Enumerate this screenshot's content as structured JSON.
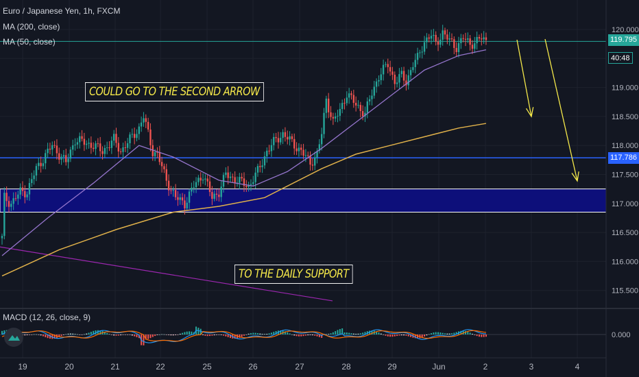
{
  "header": {
    "symbol_line": "Euro / Japanese Yen, 1h, FXCM",
    "ma200_label": "MA (200, close)",
    "ma50_label": "MA (50, close)",
    "macd_label": "MACD (12, 26, close, 9)"
  },
  "annotations": {
    "top_note": "COULD GO TO THE SECOND ARROW",
    "bottom_note": "TO THE DAILY SUPPORT"
  },
  "price_axis": {
    "current_price": "119.795",
    "countdown": "40:48",
    "level_price": "117.786",
    "ticks": [
      "120.000",
      "119.000",
      "118.500",
      "118.000",
      "117.500",
      "117.000",
      "116.500",
      "116.000",
      "115.500"
    ],
    "macd_tick": "0.000"
  },
  "time_axis": {
    "ticks": [
      "19",
      "20",
      "21",
      "22",
      "25",
      "26",
      "27",
      "28",
      "29",
      "Jun",
      "2",
      "3",
      "4"
    ]
  },
  "colors": {
    "background": "#131722",
    "up": "#26a69a",
    "down": "#ef5350",
    "ma50": "#9575cd",
    "ma200": "#e0b14a",
    "support_zone": "#0d0f7a",
    "level_line": "#2962ff",
    "trendline": "#9c27b0",
    "arrow": "#f5e94a",
    "macd_line": "#2196f3",
    "signal_line": "#ff6d00"
  },
  "chart_data": {
    "type": "candlestick",
    "title": "Euro / Japanese Yen, 1h, FXCM",
    "ylim": [
      115.3,
      120.15
    ],
    "x_categories": [
      "19",
      "20",
      "21",
      "22",
      "25",
      "26",
      "27",
      "28",
      "29",
      "Jun",
      "2",
      "3",
      "4"
    ],
    "price_anchors": [
      [
        0,
        116.4
      ],
      [
        1,
        117.1
      ],
      [
        4,
        117.0
      ],
      [
        8,
        117.2
      ],
      [
        11,
        117.2
      ],
      [
        15,
        117.6
      ],
      [
        22,
        118.0
      ],
      [
        28,
        117.7
      ],
      [
        32,
        118.1
      ],
      [
        40,
        118.0
      ],
      [
        44,
        117.9
      ],
      [
        49,
        118.1
      ],
      [
        52,
        117.9
      ],
      [
        55,
        118.05
      ],
      [
        60,
        118.3
      ],
      [
        62,
        118.5
      ],
      [
        66,
        117.9
      ],
      [
        68,
        117.85
      ],
      [
        72,
        117.4
      ],
      [
        76,
        117.1
      ],
      [
        80,
        117.0
      ],
      [
        84,
        117.3
      ],
      [
        88,
        117.5
      ],
      [
        92,
        117.1
      ],
      [
        95,
        117.2
      ],
      [
        98,
        117.5
      ],
      [
        103,
        117.4
      ],
      [
        108,
        117.3
      ],
      [
        112,
        117.55
      ],
      [
        116,
        117.9
      ],
      [
        120,
        118.1
      ],
      [
        123,
        118.2
      ],
      [
        127,
        118.05
      ],
      [
        131,
        117.9
      ],
      [
        135,
        117.7
      ],
      [
        138,
        117.85
      ],
      [
        140,
        118.2
      ],
      [
        142,
        118.8
      ],
      [
        145,
        118.4
      ],
      [
        148,
        118.6
      ],
      [
        151,
        118.9
      ],
      [
        155,
        118.7
      ],
      [
        159,
        118.55
      ],
      [
        162,
        118.9
      ],
      [
        165,
        119.2
      ],
      [
        169,
        119.4
      ],
      [
        172,
        119.1
      ],
      [
        175,
        119.2
      ],
      [
        177,
        119.1
      ],
      [
        180,
        119.4
      ],
      [
        182,
        119.5
      ],
      [
        185,
        119.8
      ],
      [
        188,
        119.9
      ],
      [
        190,
        119.75
      ],
      [
        193,
        119.95
      ],
      [
        196,
        119.8
      ],
      [
        199,
        119.7
      ],
      [
        202,
        119.85
      ],
      [
        205,
        119.75
      ],
      [
        208,
        119.8
      ],
      [
        210,
        119.85
      ],
      [
        212,
        119.8
      ]
    ],
    "series": [
      {
        "name": "MA (50, close)",
        "values": [
          [
            0,
            116.1
          ],
          [
            20,
            116.75
          ],
          [
            40,
            117.35
          ],
          [
            60,
            118.0
          ],
          [
            75,
            117.8
          ],
          [
            95,
            117.4
          ],
          [
            110,
            117.3
          ],
          [
            125,
            117.55
          ],
          [
            140,
            117.95
          ],
          [
            155,
            118.4
          ],
          [
            170,
            118.85
          ],
          [
            185,
            119.3
          ],
          [
            200,
            119.55
          ],
          [
            212,
            119.65
          ]
        ]
      },
      {
        "name": "MA (200, close)",
        "values": [
          [
            0,
            115.75
          ],
          [
            25,
            116.2
          ],
          [
            50,
            116.55
          ],
          [
            75,
            116.85
          ],
          [
            95,
            116.95
          ],
          [
            115,
            117.1
          ],
          [
            140,
            117.6
          ],
          [
            155,
            117.85
          ],
          [
            170,
            118.0
          ],
          [
            185,
            118.15
          ],
          [
            200,
            118.3
          ],
          [
            212,
            118.38
          ]
        ]
      }
    ],
    "levels": [
      117.786
    ],
    "support_zone": [
      116.85,
      117.25
    ],
    "macd": {
      "ylim": [
        -0.3,
        0.3
      ],
      "zero_label": "0.000"
    }
  }
}
